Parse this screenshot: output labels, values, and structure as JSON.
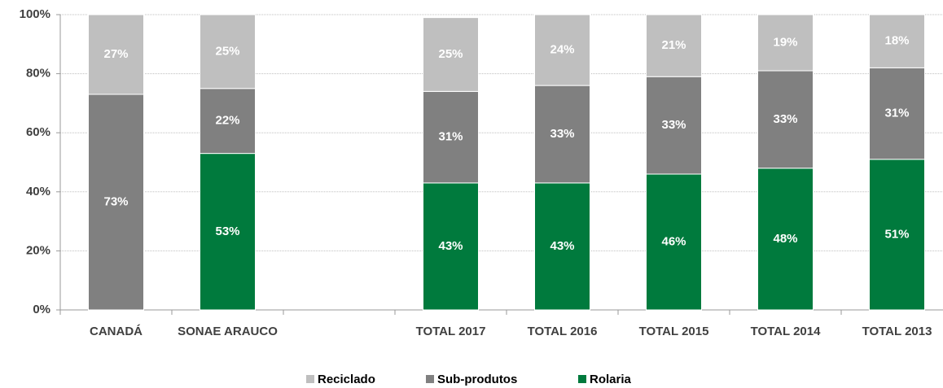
{
  "chart_data": {
    "type": "stacked_bar",
    "categories": [
      "CANADÁ",
      "SONAE ARAUCO",
      null,
      "TOTAL 2017",
      "TOTAL 2016",
      "TOTAL 2015",
      "TOTAL 2014",
      "TOTAL 2013"
    ],
    "series": [
      {
        "name": "Reciclado",
        "color": "#bfbfbf",
        "values": [
          27,
          25,
          null,
          25,
          24,
          21,
          19,
          18
        ],
        "value_labels": [
          "27%",
          "25%",
          null,
          "25%",
          "24%",
          "21%",
          "19%",
          "18%"
        ]
      },
      {
        "name": "Sub-produtos",
        "color": "#808080",
        "values": [
          73,
          22,
          null,
          31,
          33,
          33,
          33,
          31
        ],
        "value_labels": [
          "73%",
          "22%",
          null,
          "31%",
          "33%",
          "33%",
          "33%",
          "31%"
        ]
      },
      {
        "name": "Rolaria",
        "color": "#007a3d",
        "values": [
          null,
          53,
          null,
          43,
          43,
          46,
          48,
          51
        ],
        "value_labels": [
          null,
          "53%",
          null,
          "43%",
          "43%",
          "46%",
          "48%",
          "51%"
        ]
      }
    ],
    "ylim": [
      0,
      100
    ],
    "yticks": [
      {
        "value": 0,
        "label": "0%"
      },
      {
        "value": 20,
        "label": "20%"
      },
      {
        "value": 40,
        "label": "40%"
      },
      {
        "value": 60,
        "label": "60%"
      },
      {
        "value": 80,
        "label": "80%"
      },
      {
        "value": 100,
        "label": "100%"
      }
    ],
    "grid": true,
    "legend": "bottom"
  }
}
